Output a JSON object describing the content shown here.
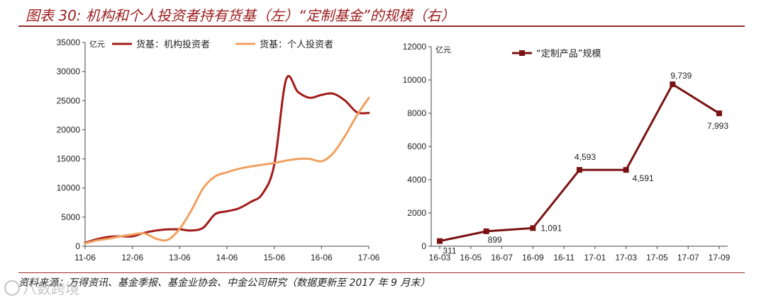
{
  "figure": {
    "title": "图表 30: 机构和个人投资者持有货基（左）“定制基金”的规模（右）",
    "source": "资料来源：万得资讯、基金季报、基金业协会、中金公司研究（数据更新至 2017 年 9 月末）",
    "watermark": "八数跨境"
  },
  "chart_data": [
    {
      "type": "line",
      "unit": "亿元",
      "ylim": [
        0,
        35000
      ],
      "yticks": [
        0,
        5000,
        10000,
        15000,
        20000,
        25000,
        30000,
        35000
      ],
      "xticks": [
        "11-06",
        "12-06",
        "13-06",
        "14-06",
        "15-06",
        "16-06",
        "17-06"
      ],
      "legend_position": "top",
      "series": [
        {
          "name": "货基：机构投资者",
          "color": "#a31a1a",
          "x": [
            0,
            0.25,
            0.5,
            0.75,
            1.0,
            1.25,
            1.5,
            1.75,
            2.0,
            2.25,
            2.5,
            2.75,
            3.0,
            3.25,
            3.5,
            3.75,
            4.0,
            4.25,
            4.5,
            4.75,
            5.0,
            5.25,
            5.5,
            5.75,
            6.0
          ],
          "values": [
            600,
            1200,
            1600,
            1700,
            1700,
            2300,
            2700,
            2900,
            2900,
            2700,
            3200,
            5500,
            6000,
            6500,
            7600,
            9000,
            14000,
            28600,
            26500,
            25500,
            26000,
            26200,
            25000,
            23000,
            22900
          ]
        },
        {
          "name": "货基：个人投资者",
          "color": "#f0a060",
          "x": [
            0,
            0.25,
            0.5,
            0.75,
            1.0,
            1.25,
            1.5,
            1.75,
            2.0,
            2.25,
            2.5,
            2.75,
            3.0,
            3.25,
            3.5,
            3.75,
            4.0,
            4.25,
            4.5,
            4.75,
            5.0,
            5.25,
            5.5,
            5.75,
            6.0
          ],
          "values": [
            500,
            1000,
            1300,
            1700,
            2000,
            2200,
            1300,
            1100,
            3000,
            6200,
            10000,
            12000,
            12700,
            13300,
            13700,
            14000,
            14300,
            14700,
            15000,
            15000,
            14600,
            16000,
            19000,
            22500,
            25500
          ]
        }
      ]
    },
    {
      "type": "line",
      "unit": "亿元",
      "ylim": [
        0,
        12000
      ],
      "yticks": [
        0,
        2000,
        4000,
        6000,
        8000,
        10000,
        12000
      ],
      "xticks": [
        "16-03",
        "16-05",
        "16-07",
        "16-09",
        "16-11",
        "17-01",
        "17-03",
        "17-05",
        "17-07",
        "17-09"
      ],
      "legend_position": "top",
      "series": [
        {
          "name": "“定制产品”规模",
          "color": "#7a1212",
          "x": [
            0,
            1.5,
            3,
            4.5,
            6,
            7.5,
            9
          ],
          "values": [
            311,
            899,
            1091,
            4593,
            4591,
            9739,
            7993
          ],
          "labels": [
            "311",
            "899",
            "1,091",
            "4,593",
            "4,591",
            "9,739",
            "7,993"
          ]
        }
      ]
    }
  ]
}
